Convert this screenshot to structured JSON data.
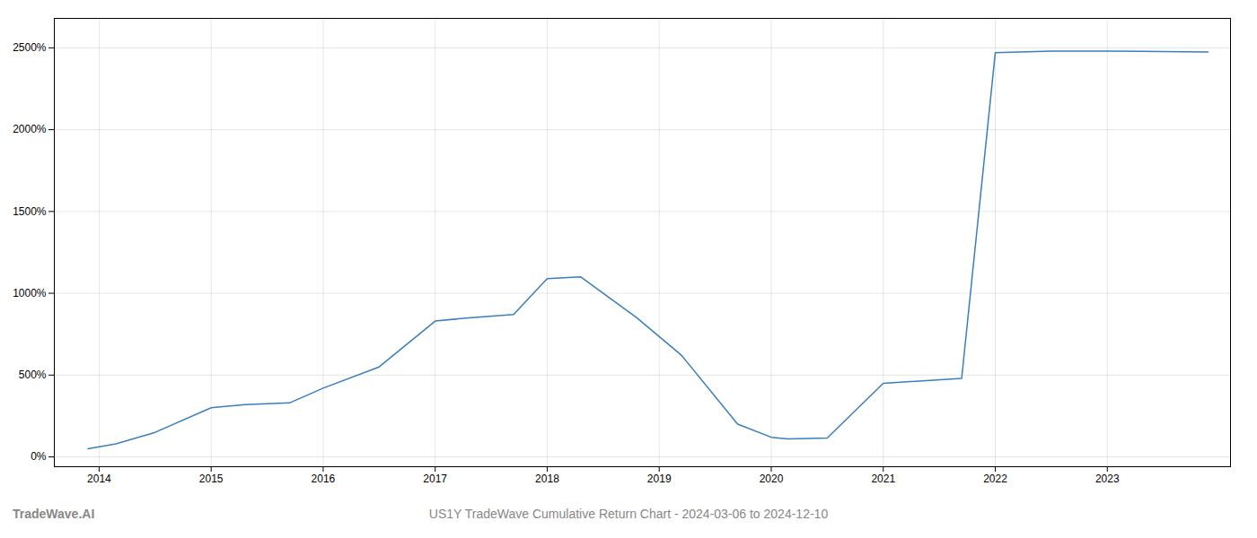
{
  "chart_data": {
    "type": "line",
    "title": "US1Y TradeWave Cumulative Return Chart - 2024-03-06 to 2024-12-10",
    "annotations": [
      "TradeWave.AI"
    ],
    "x": [
      2013.9,
      2014.15,
      2014.5,
      2015.0,
      2015.3,
      2015.7,
      2016.0,
      2016.5,
      2017.0,
      2017.3,
      2017.7,
      2018.0,
      2018.3,
      2018.8,
      2019.2,
      2019.7,
      2020.0,
      2020.15,
      2020.5,
      2021.0,
      2021.7,
      2022.0,
      2022.5,
      2023.0,
      2023.9
    ],
    "values": [
      50,
      80,
      150,
      300,
      320,
      330,
      420,
      550,
      830,
      850,
      870,
      1090,
      1100,
      850,
      620,
      200,
      120,
      110,
      115,
      450,
      480,
      2470,
      2480,
      2480,
      2475
    ],
    "color": "#3a7ebf",
    "xlim": [
      2013.6,
      2024.1
    ],
    "xticks": [
      2014,
      2015,
      2016,
      2017,
      2018,
      2019,
      2020,
      2021,
      2022,
      2023
    ],
    "ylim": [
      -60,
      2680
    ],
    "yticks": [
      {
        "value": 0,
        "label": "0%"
      },
      {
        "value": 500,
        "label": "500%"
      },
      {
        "value": 1000,
        "label": "1000%"
      },
      {
        "value": 1500,
        "label": "1500%"
      },
      {
        "value": 2000,
        "label": "2000%"
      },
      {
        "value": 2500,
        "label": "2500%"
      }
    ],
    "grid": true
  }
}
